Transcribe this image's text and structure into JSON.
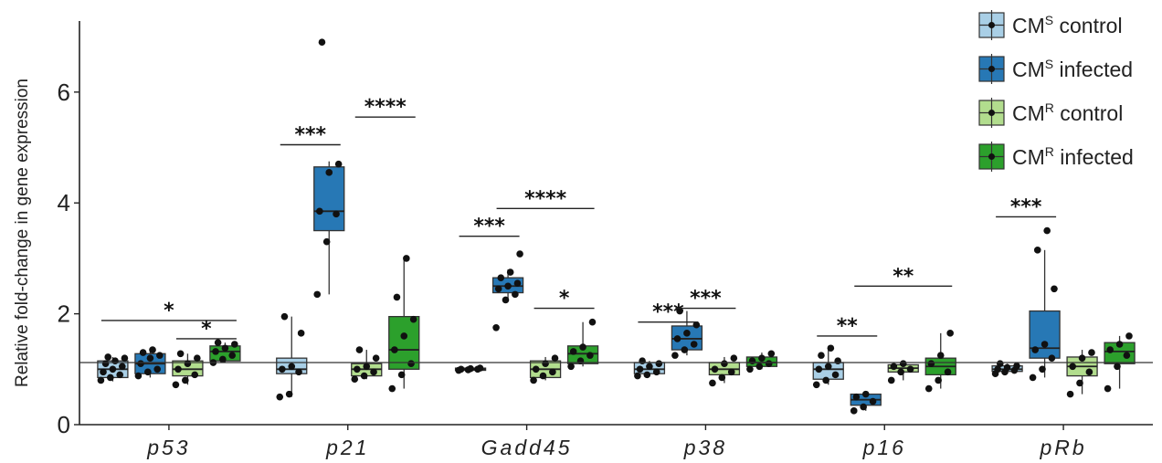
{
  "chart_data": {
    "type": "box",
    "title": "",
    "xlabel": "",
    "ylabel": "Relative fold-change in gene expression",
    "ylim": [
      0,
      7.2
    ],
    "yticks": [
      0,
      2,
      4,
      6
    ],
    "categories": [
      "p53",
      "p21",
      "Gadd45",
      "p38",
      "p16",
      "pRb"
    ],
    "reference_line": 1.12,
    "series": [
      {
        "name": "CMS control",
        "base": "CM",
        "sup": "S",
        "label": "control",
        "color": "#a9cfe6",
        "boxes": [
          {
            "q1": 0.85,
            "median": 1.0,
            "q3": 1.15,
            "whisker_low": 0.78,
            "whisker_high": 1.22,
            "points": [
              0.8,
              0.85,
              0.9,
              0.95,
              1.0,
              1.05,
              1.1,
              1.15,
              1.2,
              1.22
            ]
          },
          {
            "q1": 0.92,
            "median": 1.0,
            "q3": 1.2,
            "whisker_low": 0.5,
            "whisker_high": 1.95,
            "points": [
              0.5,
              0.55,
              0.95,
              1.0,
              1.05,
              1.65,
              1.95
            ]
          },
          {
            "q1": 0.98,
            "median": 1.0,
            "q3": 1.02,
            "whisker_low": 0.98,
            "whisker_high": 1.02,
            "points": [
              0.98,
              0.99,
              1.0,
              1.0,
              1.01,
              1.02
            ]
          },
          {
            "q1": 0.92,
            "median": 1.0,
            "q3": 1.12,
            "whisker_low": 0.88,
            "whisker_high": 1.15,
            "points": [
              0.88,
              0.9,
              0.95,
              1.0,
              1.05,
              1.1,
              1.15
            ]
          },
          {
            "q1": 0.82,
            "median": 1.0,
            "q3": 1.12,
            "whisker_low": 0.72,
            "whisker_high": 1.38,
            "points": [
              0.72,
              0.8,
              0.9,
              1.0,
              1.05,
              1.15,
              1.25,
              1.38
            ]
          },
          {
            "q1": 0.96,
            "median": 1.0,
            "q3": 1.06,
            "whisker_low": 0.92,
            "whisker_high": 1.1,
            "points": [
              0.92,
              0.95,
              0.98,
              1.0,
              1.03,
              1.06,
              1.1
            ]
          }
        ]
      },
      {
        "name": "CMS infected",
        "base": "CM",
        "sup": "S",
        "label": "infected",
        "color": "#2778b5",
        "boxes": [
          {
            "q1": 0.92,
            "median": 1.1,
            "q3": 1.28,
            "whisker_low": 0.85,
            "whisker_high": 1.35,
            "points": [
              0.88,
              0.95,
              1.0,
              1.1,
              1.2,
              1.25,
              1.3,
              1.35
            ]
          },
          {
            "q1": 3.5,
            "median": 3.85,
            "q3": 4.65,
            "whisker_low": 2.35,
            "whisker_high": 4.75,
            "points": [
              2.35,
              3.3,
              3.8,
              3.85,
              4.55,
              4.7,
              6.9
            ]
          },
          {
            "q1": 2.38,
            "median": 2.5,
            "q3": 2.65,
            "whisker_low": 2.25,
            "whisker_high": 2.8,
            "points": [
              1.75,
              2.25,
              2.35,
              2.45,
              2.5,
              2.55,
              2.65,
              2.75,
              3.08
            ]
          },
          {
            "q1": 1.35,
            "median": 1.55,
            "q3": 1.78,
            "whisker_low": 1.25,
            "whisker_high": 2.05,
            "points": [
              1.25,
              1.35,
              1.45,
              1.55,
              1.65,
              1.8,
              2.05
            ]
          },
          {
            "q1": 0.35,
            "median": 0.45,
            "q3": 0.55,
            "whisker_low": 0.25,
            "whisker_high": 0.58,
            "points": [
              0.25,
              0.32,
              0.42,
              0.5,
              0.55
            ]
          },
          {
            "q1": 1.2,
            "median": 1.38,
            "q3": 2.05,
            "whisker_low": 0.85,
            "whisker_high": 3.15,
            "points": [
              0.85,
              1.0,
              1.2,
              1.35,
              1.45,
              2.45,
              3.15,
              3.5
            ]
          }
        ]
      },
      {
        "name": "CMR control",
        "base": "CM",
        "sup": "R",
        "label": "control",
        "color": "#b2dd8e",
        "boxes": [
          {
            "q1": 0.88,
            "median": 1.0,
            "q3": 1.15,
            "whisker_low": 0.72,
            "whisker_high": 1.28,
            "points": [
              0.72,
              0.8,
              0.9,
              1.0,
              1.1,
              1.2,
              1.28
            ]
          },
          {
            "q1": 0.88,
            "median": 1.0,
            "q3": 1.1,
            "whisker_low": 0.82,
            "whisker_high": 1.35,
            "points": [
              0.82,
              0.88,
              0.95,
              1.0,
              1.05,
              1.2,
              1.35
            ]
          },
          {
            "q1": 0.85,
            "median": 1.0,
            "q3": 1.15,
            "whisker_low": 0.8,
            "whisker_high": 1.22,
            "points": [
              0.8,
              0.88,
              0.95,
              1.0,
              1.1,
              1.2
            ]
          },
          {
            "q1": 0.9,
            "median": 1.0,
            "q3": 1.12,
            "whisker_low": 0.75,
            "whisker_high": 1.22,
            "points": [
              0.75,
              0.85,
              0.95,
              1.0,
              1.1,
              1.2
            ]
          },
          {
            "q1": 0.95,
            "median": 1.02,
            "q3": 1.08,
            "whisker_low": 0.8,
            "whisker_high": 1.1,
            "points": [
              0.8,
              0.95,
              1.0,
              1.05,
              1.1
            ]
          },
          {
            "q1": 0.88,
            "median": 1.05,
            "q3": 1.22,
            "whisker_low": 0.55,
            "whisker_high": 1.35,
            "points": [
              0.55,
              0.75,
              0.95,
              1.05,
              1.2,
              1.3
            ]
          }
        ]
      },
      {
        "name": "CMR infected",
        "base": "CM",
        "sup": "R",
        "label": "infected",
        "color": "#2ca02c",
        "boxes": [
          {
            "q1": 1.15,
            "median": 1.32,
            "q3": 1.42,
            "whisker_low": 1.12,
            "whisker_high": 1.48,
            "points": [
              1.12,
              1.18,
              1.25,
              1.32,
              1.38,
              1.45,
              1.48
            ]
          },
          {
            "q1": 1.0,
            "median": 1.35,
            "q3": 1.95,
            "whisker_low": 0.65,
            "whisker_high": 3.0,
            "points": [
              0.65,
              0.9,
              1.1,
              1.35,
              1.6,
              1.9,
              2.3,
              3.0
            ]
          },
          {
            "q1": 1.1,
            "median": 1.28,
            "q3": 1.42,
            "whisker_low": 1.05,
            "whisker_high": 1.85,
            "points": [
              1.05,
              1.15,
              1.25,
              1.32,
              1.4,
              1.85
            ]
          },
          {
            "q1": 1.05,
            "median": 1.12,
            "q3": 1.22,
            "whisker_low": 1.0,
            "whisker_high": 1.3,
            "points": [
              1.0,
              1.05,
              1.1,
              1.15,
              1.2,
              1.28
            ]
          },
          {
            "q1": 0.9,
            "median": 1.05,
            "q3": 1.2,
            "whisker_low": 0.65,
            "whisker_high": 1.65,
            "points": [
              0.65,
              0.8,
              0.95,
              1.1,
              1.25,
              1.65
            ]
          },
          {
            "q1": 1.1,
            "median": 1.32,
            "q3": 1.48,
            "whisker_low": 0.65,
            "whisker_high": 1.6,
            "points": [
              0.65,
              1.05,
              1.25,
              1.35,
              1.45,
              1.6
            ]
          }
        ]
      }
    ],
    "significance": [
      {
        "category": 0,
        "from": 0,
        "to": 3,
        "y": 1.88,
        "label": "*"
      },
      {
        "category": 0,
        "from": 2,
        "to": 3,
        "y": 1.55,
        "label": "*"
      },
      {
        "category": 1,
        "from": 0,
        "to": 1,
        "y": 5.05,
        "label": "***"
      },
      {
        "category": 1,
        "from": 2,
        "to": 3,
        "y": 5.55,
        "label": "****"
      },
      {
        "category": 2,
        "from": 0,
        "to": 1,
        "y": 3.4,
        "label": "***"
      },
      {
        "category": 2,
        "from": 1,
        "to": 3,
        "y": 3.9,
        "label": "****"
      },
      {
        "category": 2,
        "from": 2,
        "to": 3,
        "y": 2.1,
        "label": "*"
      },
      {
        "category": 3,
        "from": 0,
        "to": 1,
        "y": 1.85,
        "label": "***"
      },
      {
        "category": 3,
        "from": 1,
        "to": 2,
        "y": 2.1,
        "label": "***"
      },
      {
        "category": 4,
        "from": 0,
        "to": 1,
        "y": 1.6,
        "label": "**"
      },
      {
        "category": 4,
        "from": 1,
        "to": 3,
        "y": 2.5,
        "label": "**"
      },
      {
        "category": 5,
        "from": 0,
        "to": 1,
        "y": 3.75,
        "label": "***"
      }
    ],
    "legend": "top-right",
    "grid": false
  }
}
